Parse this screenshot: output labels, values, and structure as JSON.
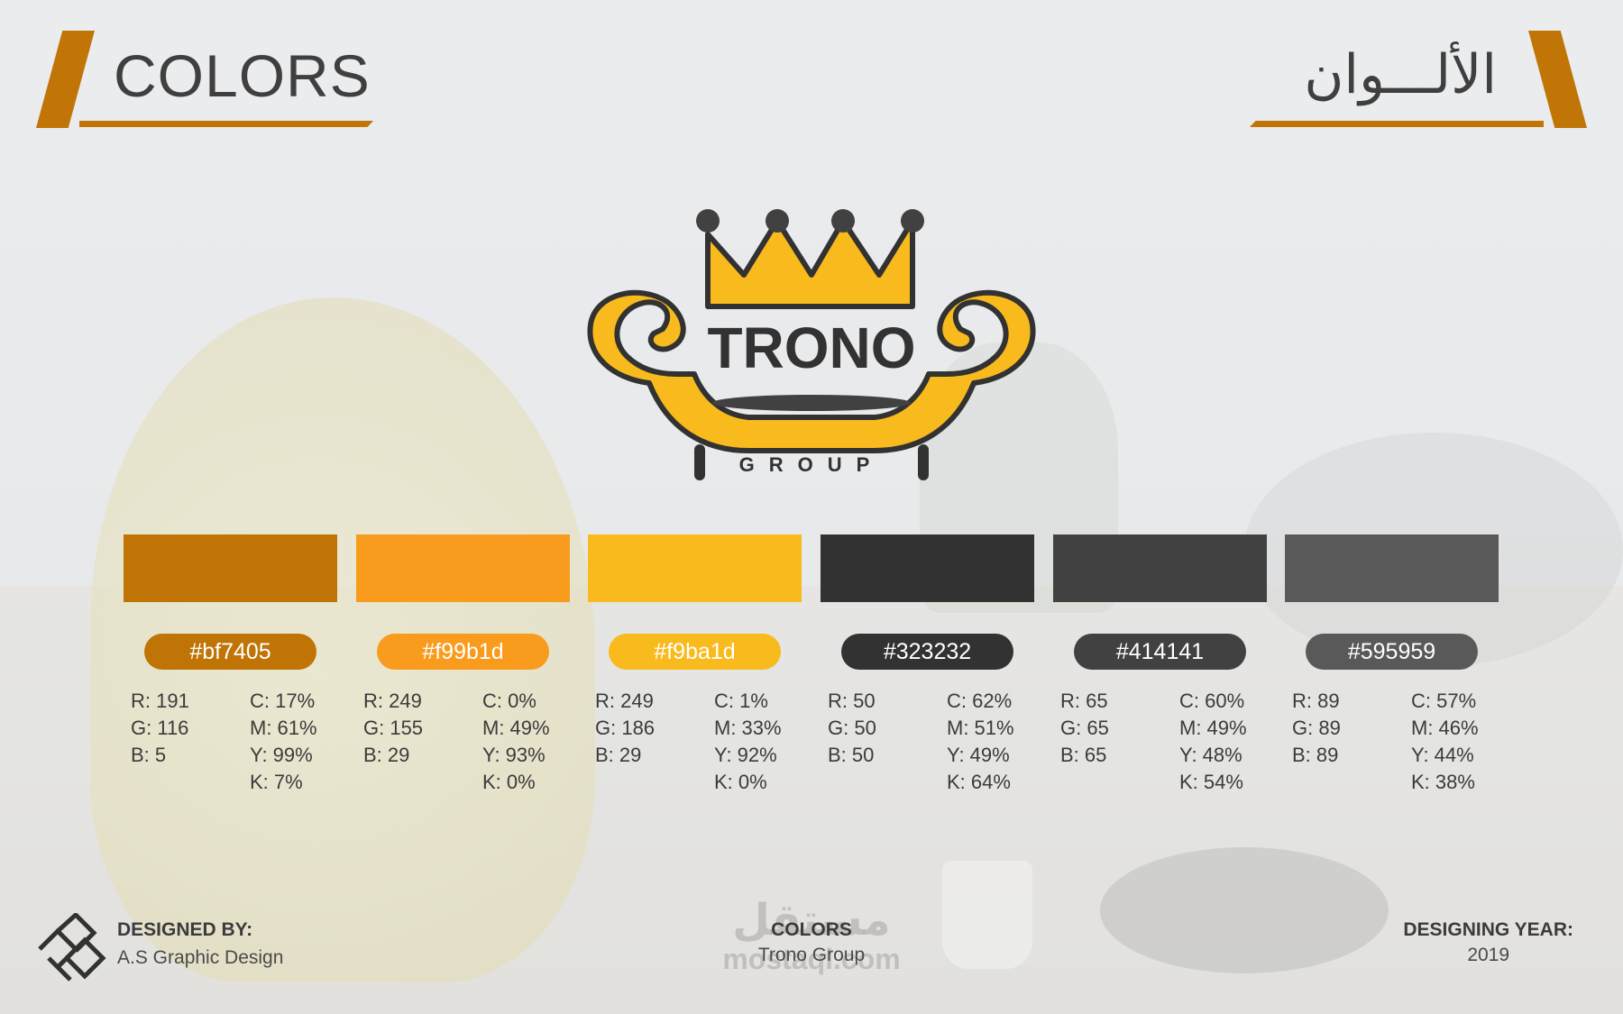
{
  "header": {
    "title_en": "COLORS",
    "title_ar": "الألـــوان",
    "accent_color": "#c07506"
  },
  "logo": {
    "brand": "TRONO",
    "sub": "GROUP",
    "icon": "crown-sofa-icon"
  },
  "swatches": [
    {
      "hex": "#bf7405",
      "color": "#bf7405",
      "rgb": [
        "R: 191",
        "G: 116",
        "B: 5"
      ],
      "cmyk": [
        "C: 17%",
        "M: 61%",
        "Y: 99%",
        "K: 7%"
      ]
    },
    {
      "hex": "#f99b1d",
      "color": "#f99b1d",
      "rgb": [
        "R: 249",
        "G: 155",
        "B: 29"
      ],
      "cmyk": [
        "C: 0%",
        "M: 49%",
        "Y: 93%",
        "K: 0%"
      ]
    },
    {
      "hex": "#f9ba1d",
      "color": "#f9ba1d",
      "rgb": [
        "R: 249",
        "G: 186",
        "B: 29"
      ],
      "cmyk": [
        "C: 1%",
        "M: 33%",
        "Y: 92%",
        "K: 0%"
      ]
    },
    {
      "hex": "#323232",
      "color": "#323232",
      "rgb": [
        "R: 50",
        "G: 50",
        "B: 50"
      ],
      "cmyk": [
        "C: 62%",
        "M: 51%",
        "Y: 49%",
        "K: 64%"
      ]
    },
    {
      "hex": "#414141",
      "color": "#414141",
      "rgb": [
        "R: 65",
        "G: 65",
        "B: 65"
      ],
      "cmyk": [
        "C: 60%",
        "M: 49%",
        "Y: 48%",
        "K: 54%"
      ]
    },
    {
      "hex": "#595959",
      "color": "#595959",
      "rgb": [
        "R: 89",
        "G: 89",
        "B: 89"
      ],
      "cmyk": [
        "C: 57%",
        "M: 46%",
        "Y: 44%",
        "K: 38%"
      ]
    }
  ],
  "footer": {
    "designed_by_label": "DESIGNED BY:",
    "designed_by_value": "A.S Graphic Design",
    "center_label": "COLORS",
    "center_value": "Trono Group",
    "year_label": "DESIGNING YEAR:",
    "year_value": "2019"
  },
  "watermark": {
    "ar": "مستقل",
    "en": "mostaql.com"
  }
}
